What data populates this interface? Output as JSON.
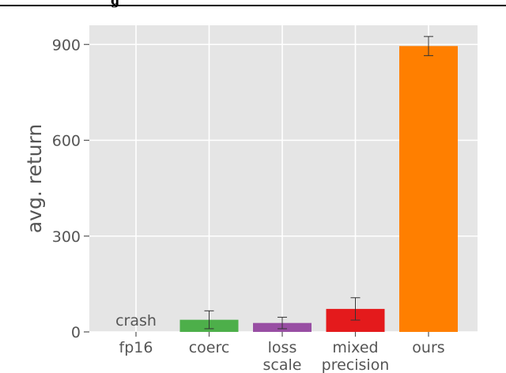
{
  "caption": "g",
  "chart_data": {
    "type": "bar",
    "title": "",
    "xlabel": "",
    "ylabel": "avg. return",
    "ylim": [
      0,
      960
    ],
    "yticks": [
      0,
      300,
      600,
      900
    ],
    "grid": true,
    "categories": [
      {
        "lines": [
          "fp16"
        ]
      },
      {
        "lines": [
          "coerc"
        ]
      },
      {
        "lines": [
          "loss",
          "scale"
        ]
      },
      {
        "lines": [
          "mixed",
          "precision"
        ]
      },
      {
        "lines": [
          "ours"
        ]
      }
    ],
    "values": [
      null,
      38,
      28,
      72,
      895
    ],
    "errors": [
      null,
      28,
      18,
      35,
      30
    ],
    "colors": [
      "#999999",
      "#4daf4a",
      "#984ea3",
      "#e41a1c",
      "#ff7f00"
    ],
    "annotations": [
      {
        "category_index": 0,
        "text": "crash"
      }
    ]
  }
}
